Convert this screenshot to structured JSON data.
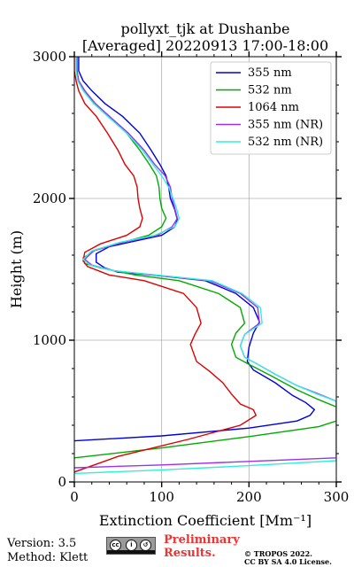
{
  "chart_data": {
    "type": "line",
    "title_line1": "pollyxt_tjk at Dushanbe",
    "title_line2": "[Averaged] 20220913 17:00-18:00",
    "xlabel": "Extinction Coefficient [Mm⁻¹]",
    "ylabel": "Height (m)",
    "xlim": [
      0,
      300
    ],
    "ylim": [
      0,
      3000
    ],
    "xticks": [
      0,
      100,
      200,
      300
    ],
    "yticks": [
      0,
      1000,
      2000,
      3000
    ],
    "grid": true,
    "legend_position": "top-right",
    "series": [
      {
        "name": "355 nm",
        "color": "#0000dd",
        "points": [
          [
            0,
            290
          ],
          [
            100,
            325
          ],
          [
            200,
            380
          ],
          [
            255,
            430
          ],
          [
            270,
            470
          ],
          [
            275,
            510
          ],
          [
            265,
            560
          ],
          [
            250,
            610
          ],
          [
            230,
            700
          ],
          [
            205,
            790
          ],
          [
            198,
            850
          ],
          [
            200,
            950
          ],
          [
            205,
            1050
          ],
          [
            212,
            1130
          ],
          [
            205,
            1230
          ],
          [
            185,
            1330
          ],
          [
            150,
            1420
          ],
          [
            90,
            1460
          ],
          [
            50,
            1480
          ],
          [
            35,
            1510
          ],
          [
            25,
            1550
          ],
          [
            25,
            1610
          ],
          [
            40,
            1660
          ],
          [
            70,
            1700
          ],
          [
            100,
            1740
          ],
          [
            115,
            1800
          ],
          [
            118,
            1850
          ],
          [
            115,
            1920
          ],
          [
            110,
            2000
          ],
          [
            108,
            2080
          ],
          [
            105,
            2160
          ],
          [
            98,
            2240
          ],
          [
            88,
            2340
          ],
          [
            75,
            2460
          ],
          [
            55,
            2580
          ],
          [
            35,
            2670
          ],
          [
            20,
            2760
          ],
          [
            10,
            2830
          ],
          [
            5,
            2900
          ],
          [
            5,
            3000
          ]
        ]
      },
      {
        "name": "532 nm",
        "color": "#00aa00",
        "points": [
          [
            0,
            170
          ],
          [
            100,
            240
          ],
          [
            200,
            320
          ],
          [
            280,
            390
          ],
          [
            300,
            430
          ],
          [
            300,
            530
          ],
          [
            280,
            580
          ],
          [
            255,
            650
          ],
          [
            225,
            750
          ],
          [
            200,
            830
          ],
          [
            185,
            880
          ],
          [
            180,
            970
          ],
          [
            185,
            1050
          ],
          [
            195,
            1120
          ],
          [
            190,
            1230
          ],
          [
            165,
            1330
          ],
          [
            120,
            1420
          ],
          [
            70,
            1460
          ],
          [
            30,
            1510
          ],
          [
            12,
            1540
          ],
          [
            10,
            1580
          ],
          [
            25,
            1640
          ],
          [
            55,
            1690
          ],
          [
            85,
            1740
          ],
          [
            100,
            1800
          ],
          [
            105,
            1860
          ],
          [
            100,
            1930
          ],
          [
            98,
            2000
          ],
          [
            97,
            2080
          ],
          [
            94,
            2160
          ],
          [
            86,
            2240
          ],
          [
            75,
            2340
          ],
          [
            60,
            2460
          ],
          [
            40,
            2580
          ],
          [
            22,
            2670
          ],
          [
            12,
            2760
          ],
          [
            5,
            2830
          ],
          [
            3,
            2900
          ],
          [
            3,
            3000
          ]
        ]
      },
      {
        "name": "1064 nm",
        "color": "#dd0000",
        "points": [
          [
            0,
            70
          ],
          [
            50,
            180
          ],
          [
            130,
            300
          ],
          [
            190,
            400
          ],
          [
            208,
            470
          ],
          [
            205,
            510
          ],
          [
            190,
            550
          ],
          [
            180,
            620
          ],
          [
            170,
            700
          ],
          [
            155,
            780
          ],
          [
            140,
            850
          ],
          [
            133,
            970
          ],
          [
            138,
            1040
          ],
          [
            145,
            1120
          ],
          [
            140,
            1230
          ],
          [
            125,
            1330
          ],
          [
            80,
            1420
          ],
          [
            40,
            1460
          ],
          [
            15,
            1520
          ],
          [
            10,
            1560
          ],
          [
            12,
            1620
          ],
          [
            30,
            1680
          ],
          [
            60,
            1740
          ],
          [
            75,
            1800
          ],
          [
            78,
            1860
          ],
          [
            75,
            1930
          ],
          [
            73,
            2000
          ],
          [
            72,
            2080
          ],
          [
            68,
            2160
          ],
          [
            58,
            2240
          ],
          [
            50,
            2340
          ],
          [
            38,
            2460
          ],
          [
            25,
            2580
          ],
          [
            12,
            2670
          ],
          [
            5,
            2760
          ],
          [
            2,
            2830
          ],
          [
            0,
            2900
          ],
          [
            0,
            3000
          ]
        ]
      },
      {
        "name": "355 nm (NR)",
        "color": "#9933ee",
        "points": [
          [
            0,
            100
          ],
          [
            100,
            120
          ],
          [
            200,
            145
          ],
          [
            300,
            170
          ],
          [
            300,
            570
          ],
          [
            280,
            620
          ],
          [
            255,
            680
          ],
          [
            230,
            760
          ],
          [
            210,
            830
          ],
          [
            195,
            880
          ],
          [
            190,
            960
          ],
          [
            195,
            1040
          ],
          [
            212,
            1120
          ],
          [
            210,
            1230
          ],
          [
            190,
            1330
          ],
          [
            155,
            1420
          ],
          [
            90,
            1460
          ],
          [
            45,
            1490
          ],
          [
            20,
            1530
          ],
          [
            12,
            1570
          ],
          [
            22,
            1630
          ],
          [
            55,
            1690
          ],
          [
            95,
            1740
          ],
          [
            112,
            1800
          ],
          [
            118,
            1860
          ],
          [
            115,
            1930
          ],
          [
            112,
            2000
          ],
          [
            110,
            2080
          ],
          [
            104,
            2160
          ],
          [
            92,
            2240
          ],
          [
            80,
            2340
          ],
          [
            62,
            2460
          ],
          [
            40,
            2580
          ],
          [
            24,
            2670
          ],
          [
            12,
            2760
          ],
          [
            5,
            2830
          ],
          [
            3,
            2900
          ],
          [
            3,
            3000
          ]
        ]
      },
      {
        "name": "532 nm (NR)",
        "color": "#33eedd",
        "points": [
          [
            0,
            60
          ],
          [
            100,
            85
          ],
          [
            200,
            115
          ],
          [
            300,
            150
          ],
          [
            300,
            570
          ],
          [
            278,
            620
          ],
          [
            255,
            680
          ],
          [
            230,
            760
          ],
          [
            210,
            830
          ],
          [
            195,
            880
          ],
          [
            190,
            960
          ],
          [
            195,
            1040
          ],
          [
            215,
            1120
          ],
          [
            213,
            1230
          ],
          [
            192,
            1330
          ],
          [
            158,
            1420
          ],
          [
            95,
            1460
          ],
          [
            45,
            1490
          ],
          [
            18,
            1530
          ],
          [
            10,
            1570
          ],
          [
            20,
            1630
          ],
          [
            52,
            1690
          ],
          [
            92,
            1740
          ],
          [
            115,
            1800
          ],
          [
            120,
            1860
          ],
          [
            117,
            1930
          ],
          [
            113,
            2000
          ],
          [
            108,
            2080
          ],
          [
            100,
            2160
          ],
          [
            90,
            2240
          ],
          [
            78,
            2340
          ],
          [
            60,
            2460
          ],
          [
            38,
            2580
          ],
          [
            22,
            2670
          ],
          [
            10,
            2760
          ],
          [
            4,
            2830
          ],
          [
            2,
            2900
          ],
          [
            2,
            3000
          ]
        ]
      }
    ]
  },
  "footer": {
    "version": "Version: 3.5",
    "method": "Method: Klett",
    "license_badge_icon": "cc-by-sa-badge",
    "preliminary_line1": "Preliminary",
    "preliminary_line2": "Results.",
    "copyright_line1": "© TROPOS 2022.",
    "copyright_line2": "CC BY SA 4.0 License."
  }
}
